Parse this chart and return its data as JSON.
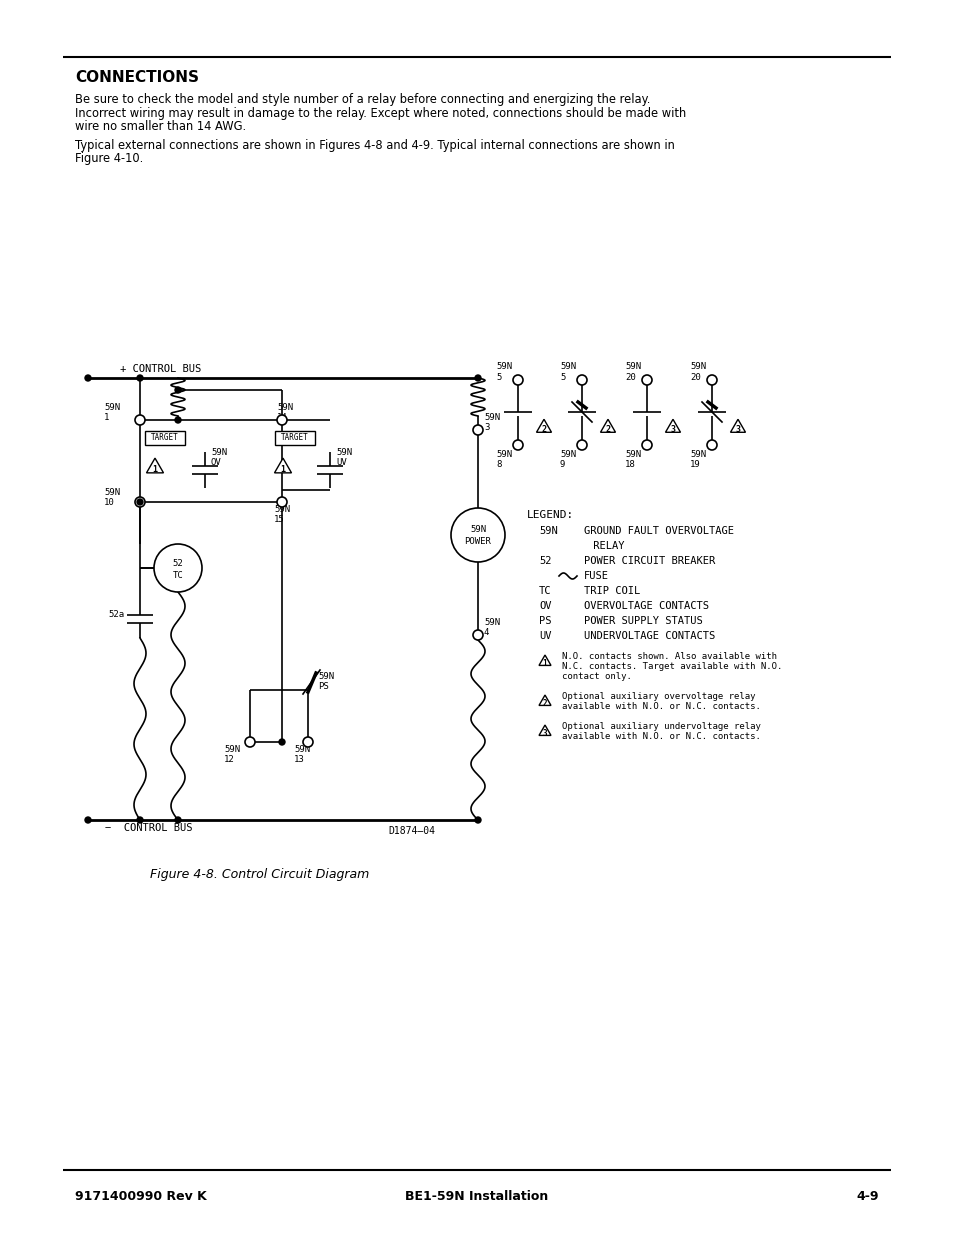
{
  "title": "CONNECTIONS",
  "para1_lines": [
    "Be sure to check the model and style number of a relay before connecting and energizing the relay.",
    "Incorrect wiring may result in damage to the relay. Except where noted, connections should be made with",
    "wire no smaller than 14 AWG."
  ],
  "para2_lines": [
    "Typical external connections are shown in Figures 4-8 and 4-9. Typical internal connections are shown in",
    "Figure 4-10."
  ],
  "fig_caption": "Figure 4-8. Control Circuit Diagram",
  "footer_left": "9171400990 Rev K",
  "footer_center": "BE1-59N Installation",
  "footer_right": "4-9",
  "diagram_label": "D1874—04",
  "bg_color": "#ffffff",
  "text_color": "#000000"
}
